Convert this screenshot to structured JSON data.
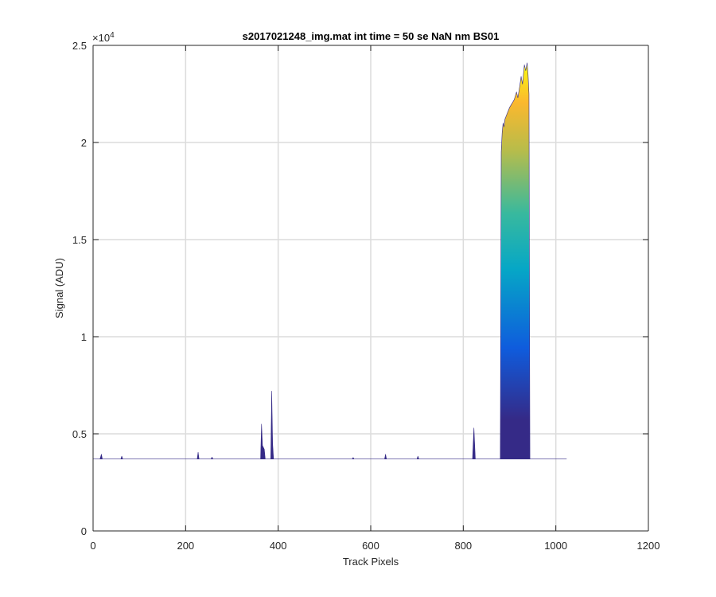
{
  "chart_data": {
    "type": "area",
    "title": "s2017021248_img.mat int time = 50 se  NaN nm BS01",
    "xlabel": "Track Pixels",
    "ylabel": "Signal (ADU)",
    "xlim": [
      0,
      1200
    ],
    "ylim": [
      0,
      25000
    ],
    "xticks": [
      0,
      200,
      400,
      600,
      800,
      1000,
      1200
    ],
    "xtick_labels": [
      "0",
      "200",
      "400",
      "600",
      "800",
      "1000",
      "1200"
    ],
    "yticks": [
      0,
      5000,
      10000,
      15000,
      20000,
      25000
    ],
    "ytick_labels": [
      "0",
      "0.5",
      "1",
      "1.5",
      "2",
      "2.5"
    ],
    "y_exponent_label": "×10",
    "y_exponent": "4",
    "grid": true,
    "colormap": "parula",
    "colors": {
      "axis": "#262626",
      "grid": "#dcdcdc",
      "low": "#352a87",
      "mid_blue": "#0f5cdd",
      "cyan": "#06a7c6",
      "green": "#38b99e",
      "yellow_green": "#b8bc4a",
      "orange": "#fbb82e",
      "top": "#f9fb0e"
    },
    "baseline": 3700,
    "series": [
      {
        "x": [
          0,
          15,
          18,
          20,
          60,
          62,
          64,
          225,
          227,
          229,
          255,
          257,
          259,
          362,
          364,
          366,
          370,
          372,
          384,
          386,
          388,
          390,
          390.5,
          560,
          562,
          564,
          630,
          632,
          634,
          700,
          702,
          704,
          820,
          823,
          826,
          880,
          882,
          884,
          886,
          888,
          890,
          895,
          900,
          905,
          910,
          915,
          918,
          922,
          925,
          928,
          932,
          935,
          938,
          940,
          942,
          944,
          1023
        ],
        "y": [
          3700,
          3700,
          3950,
          3700,
          3700,
          3850,
          3700,
          3700,
          4050,
          3700,
          3700,
          3800,
          3700,
          3700,
          5500,
          4400,
          4200,
          3700,
          3700,
          7200,
          4500,
          3700,
          3700,
          3700,
          3780,
          3700,
          3700,
          3950,
          3700,
          3700,
          3850,
          3700,
          3700,
          5300,
          3700,
          3700,
          19500,
          20500,
          21000,
          20800,
          21200,
          21500,
          21800,
          22000,
          22200,
          22600,
          22300,
          22900,
          23400,
          23000,
          24000,
          23700,
          24100,
          23500,
          22500,
          3700,
          3700
        ]
      }
    ]
  }
}
